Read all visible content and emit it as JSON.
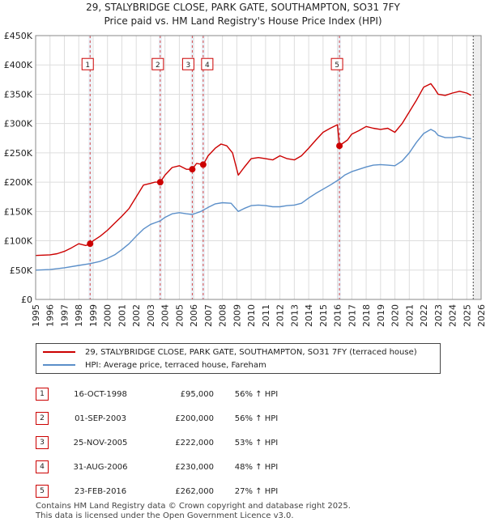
{
  "title": "29, STALYBRIDGE CLOSE, PARK GATE, SOUTHAMPTON, SO31 7FY",
  "subtitle": "Price paid vs. HM Land Registry's House Price Index (HPI)",
  "colors": {
    "property": "#cc0000",
    "hpi": "#5b8fc9",
    "grid": "#dddddd",
    "shade": "#dce6f2"
  },
  "chart_data": {
    "type": "line",
    "title": "Price paid vs. HM Land Registry's House Price Index (HPI)",
    "xlabel": "",
    "ylabel": "",
    "xlim": [
      1995,
      2026
    ],
    "ylim": [
      0,
      450000
    ],
    "y_ticks": [
      0,
      50000,
      100000,
      150000,
      200000,
      250000,
      300000,
      350000,
      400000,
      450000
    ],
    "y_tick_labels": [
      "£0",
      "£50K",
      "£100K",
      "£150K",
      "£200K",
      "£250K",
      "£300K",
      "£350K",
      "£400K",
      "£450K"
    ],
    "x_ticks": [
      1995,
      1996,
      1997,
      1998,
      1999,
      2000,
      2001,
      2002,
      2003,
      2004,
      2005,
      2006,
      2007,
      2008,
      2009,
      2010,
      2011,
      2012,
      2013,
      2014,
      2015,
      2016,
      2017,
      2018,
      2019,
      2020,
      2021,
      2022,
      2023,
      2024,
      2025,
      2026
    ],
    "grid": true,
    "series": [
      {
        "name": "29, STALYBRIDGE CLOSE, PARK GATE, SOUTHAMPTON, SO31 7FY (terraced house)",
        "x": [
          1995.0,
          1996.0,
          1996.5,
          1997.0,
          1997.5,
          1998.0,
          1998.5,
          1998.79,
          1999.0,
          1999.5,
          2000.0,
          2000.5,
          2001.0,
          2001.5,
          2002.0,
          2002.5,
          2003.0,
          2003.3,
          2003.67,
          2004.0,
          2004.5,
          2005.0,
          2005.5,
          2005.9,
          2006.2,
          2006.66,
          2007.0,
          2007.5,
          2007.9,
          2008.3,
          2008.7,
          2009.1,
          2009.5,
          2010.0,
          2010.5,
          2011.0,
          2011.5,
          2012.0,
          2012.5,
          2013.0,
          2013.5,
          2014.0,
          2014.5,
          2015.0,
          2015.5,
          2016.0,
          2016.14,
          2016.3,
          2016.7,
          2017.0,
          2017.5,
          2018.0,
          2018.5,
          2019.0,
          2019.5,
          2020.0,
          2020.5,
          2021.0,
          2021.5,
          2022.0,
          2022.5,
          2022.8,
          2023.0,
          2023.5,
          2024.0,
          2024.5,
          2025.0,
          2025.3
        ],
        "values": [
          75000,
          76000,
          78000,
          82000,
          88000,
          95000,
          92000,
          95000,
          100000,
          108000,
          118000,
          130000,
          142000,
          155000,
          175000,
          195000,
          198000,
          200000,
          200000,
          212000,
          225000,
          228000,
          222000,
          222000,
          232000,
          230000,
          245000,
          258000,
          265000,
          262000,
          250000,
          212000,
          225000,
          240000,
          242000,
          240000,
          238000,
          245000,
          240000,
          238000,
          245000,
          258000,
          272000,
          285000,
          292000,
          298000,
          262000,
          265000,
          272000,
          282000,
          288000,
          295000,
          292000,
          290000,
          292000,
          285000,
          300000,
          320000,
          340000,
          362000,
          368000,
          358000,
          350000,
          348000,
          352000,
          355000,
          352000,
          348000
        ]
      },
      {
        "name": "HPI: Average price, terraced house, Fareham",
        "x": [
          1995.0,
          1996.0,
          1997.0,
          1998.0,
          1998.79,
          1999.5,
          2000.0,
          2000.5,
          2001.0,
          2001.5,
          2002.0,
          2002.5,
          2003.0,
          2003.67,
          2004.0,
          2004.5,
          2005.0,
          2005.5,
          2005.9,
          2006.5,
          2007.0,
          2007.5,
          2008.0,
          2008.6,
          2009.1,
          2009.5,
          2010.0,
          2010.5,
          2011.0,
          2011.5,
          2012.0,
          2012.5,
          2013.0,
          2013.5,
          2014.0,
          2014.5,
          2015.0,
          2015.5,
          2016.14,
          2016.5,
          2017.0,
          2017.5,
          2018.0,
          2018.5,
          2019.0,
          2019.5,
          2020.0,
          2020.5,
          2021.0,
          2021.5,
          2022.0,
          2022.5,
          2022.8,
          2023.0,
          2023.5,
          2024.0,
          2024.5,
          2025.0,
          2025.3
        ],
        "values": [
          50000,
          51000,
          54000,
          58000,
          61000,
          65000,
          70000,
          76000,
          85000,
          95000,
          108000,
          120000,
          128000,
          134000,
          140000,
          146000,
          148000,
          146000,
          145000,
          150000,
          157000,
          163000,
          165000,
          164000,
          150000,
          155000,
          160000,
          161000,
          160000,
          158000,
          158000,
          160000,
          161000,
          164000,
          173000,
          181000,
          188000,
          195000,
          205000,
          212000,
          218000,
          222000,
          226000,
          229000,
          230000,
          229000,
          228000,
          236000,
          250000,
          268000,
          283000,
          290000,
          286000,
          280000,
          276000,
          276000,
          278000,
          275000,
          274000
        ]
      }
    ],
    "sales": [
      {
        "label": "1",
        "x": 1998.79,
        "value": 95000
      },
      {
        "label": "2",
        "x": 2003.67,
        "value": 200000
      },
      {
        "label": "3",
        "x": 2005.9,
        "value": 222000
      },
      {
        "label": "4",
        "x": 2006.66,
        "value": 230000
      },
      {
        "label": "5",
        "x": 2016.14,
        "value": 262000
      }
    ],
    "forecast_start": 2025.45
  },
  "legend": {
    "property": "29, STALYBRIDGE CLOSE, PARK GATE, SOUTHAMPTON, SO31 7FY (terraced house)",
    "hpi": "HPI: Average price, terraced house, Fareham"
  },
  "transactions": [
    {
      "num": "1",
      "date": "16-OCT-1998",
      "price": "£95,000",
      "hpi": "56% ↑ HPI"
    },
    {
      "num": "2",
      "date": "01-SEP-2003",
      "price": "£200,000",
      "hpi": "56% ↑ HPI"
    },
    {
      "num": "3",
      "date": "25-NOV-2005",
      "price": "£222,000",
      "hpi": "53% ↑ HPI"
    },
    {
      "num": "4",
      "date": "31-AUG-2006",
      "price": "£230,000",
      "hpi": "48% ↑ HPI"
    },
    {
      "num": "5",
      "date": "23-FEB-2016",
      "price": "£262,000",
      "hpi": "27% ↑ HPI"
    }
  ],
  "footer": {
    "line1": "Contains HM Land Registry data © Crown copyright and database right 2025.",
    "line2": "This data is licensed under the Open Government Licence v3.0."
  }
}
